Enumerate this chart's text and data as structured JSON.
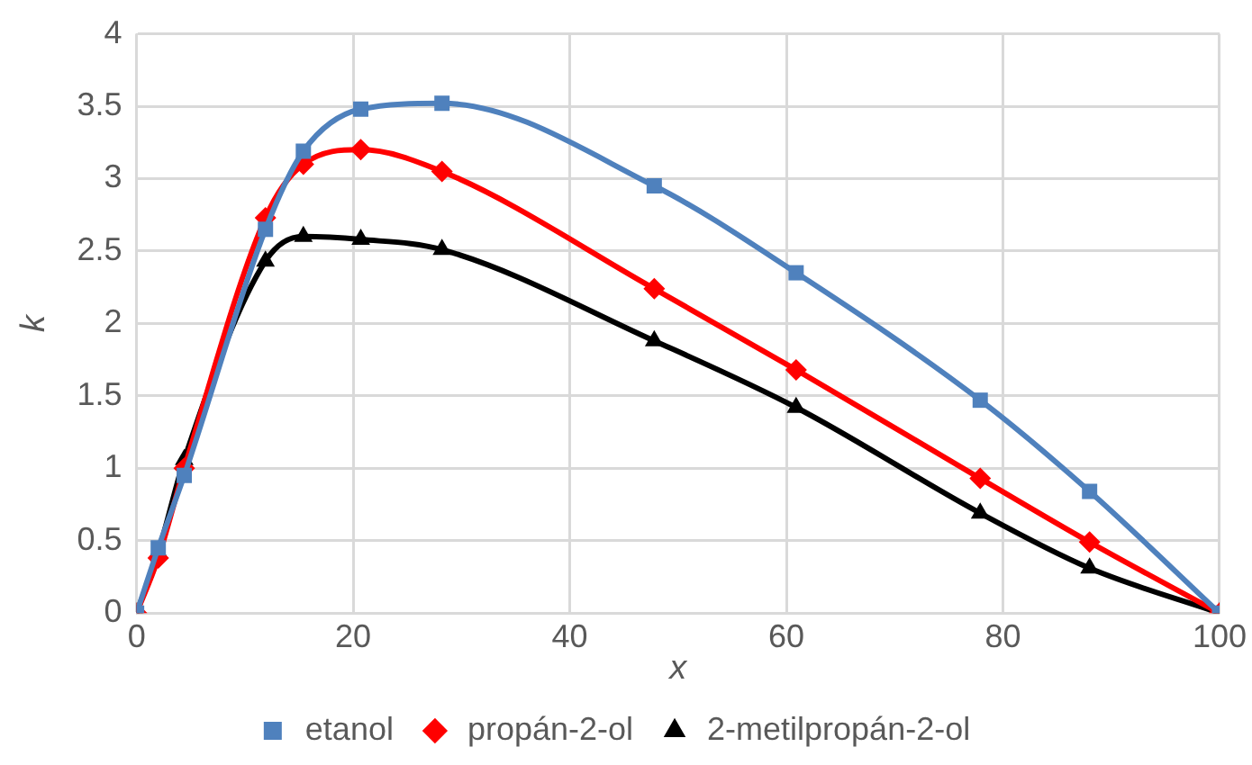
{
  "chart_data": {
    "type": "line",
    "xlabel": "x",
    "ylabel": "k",
    "x": [
      0,
      2,
      4.4,
      11.9,
      15.4,
      20.7,
      28.2,
      47.8,
      60.9,
      77.9,
      88,
      100
    ],
    "series": [
      {
        "name": "etanol",
        "color": "#4f81bd",
        "marker": "square",
        "values": [
          0,
          0.45,
          0.95,
          2.65,
          3.19,
          3.48,
          3.52,
          2.95,
          2.35,
          1.47,
          0.84,
          0
        ]
      },
      {
        "name": "propán-2-ol",
        "color": "#ff0000",
        "marker": "diamond",
        "values": [
          0,
          0.38,
          1.0,
          2.73,
          3.1,
          3.2,
          3.05,
          2.24,
          1.68,
          0.93,
          0.49,
          0
        ]
      },
      {
        "name": "2-metilpropán-2-ol",
        "color": "#000000",
        "marker": "triangle",
        "values": [
          0,
          0.42,
          1.06,
          2.43,
          2.6,
          2.58,
          2.51,
          1.88,
          1.42,
          0.69,
          0.31,
          0
        ]
      }
    ],
    "xlim": [
      0,
      100
    ],
    "xticks": [
      0,
      20,
      40,
      60,
      80,
      100
    ],
    "ylim": [
      0,
      4
    ],
    "yticks": [
      0,
      0.5,
      1,
      1.5,
      2,
      2.5,
      3,
      3.5,
      4
    ],
    "grid": true,
    "legend": "bottom"
  }
}
